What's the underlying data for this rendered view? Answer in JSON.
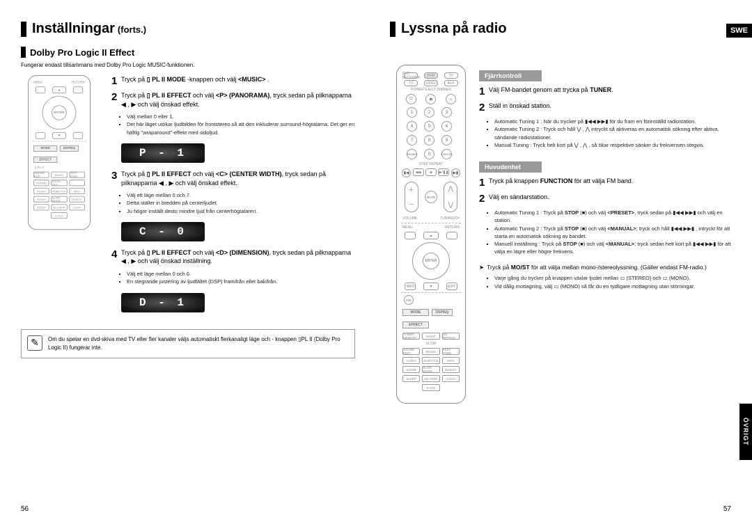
{
  "left": {
    "title_main": "Inställningar",
    "title_sub": "(forts.)",
    "section": "Dolby Pro Logic II Effect",
    "fine": "Fungerar endast tillsammans med Dolby Pro Logic MUSIC-funktionen.",
    "step1": "Tryck på <b>▯ PL II MODE</b> -knappen och välj <b>&lt;MUSIC&gt;</b> .",
    "step2": "Tryck på <b>▯ PL II EFFECT</b> och välj <b>&lt;P&gt; (PANORAMA)</b>, tryck sedan på pilknapparna ◀ , ▶ och välj önskad effekt.",
    "step2_bullets": [
      "Välj mellan 0 eller 1.",
      "Det här läget utökar ljudbilden för frontstereo så att den inkluderar surround-högtalarna. Det ger en häftig \"wraparound\"-effekt med sidoljud."
    ],
    "display1": "P - 1",
    "step3": "Tryck på <b>▯ PL II EFFECT</b> och välj <b>&lt;C&gt; (CENTER WIDTH)</b>, tryck sedan på pilknapparna ◀ , ▶ och välj önskad effekt.",
    "step3_bullets": [
      "Välj ett läge mellan 0 och 7.",
      "Detta ställer in bredden på centerljudet.",
      "Ju högre inställt desto mindre ljud från centerhögtalaren."
    ],
    "display2": "C - 0",
    "step4": "Tryck på <b>▯ PL II EFFECT</b> och välj <b>&lt;D&gt; (DIMENSION)</b>, tryck sedan på pilknapparna ◀ , ▶ och välj önskad inställning.",
    "step4_bullets": [
      "Välj ett läge mellan 0 och 6.",
      "En stegrande justering av ljudfältet (DSP) framifrån eller bakifrån."
    ],
    "display3": "D - 1",
    "note": "Om du spelar en dvd-skiva med TV eller fler kanaler väljs automatiskt flerkanaligt läge och - knappen ▯PL II (Dolby Pro Logic II) fungerar inte.",
    "page_num": "56"
  },
  "right": {
    "title_main": "Lyssna på radio",
    "swe": "SWE",
    "remote_head": "Fjärrkontroll",
    "r_step1": "Välj FM-bandet genom att trycka på <b>TUNER</b>.",
    "r_step2": "Ställ in önskad station.",
    "r_bullets": [
      "Automatic Tuning 1 : När du trycker på ▮◀◀ ▶▶▮ för du fram en förinställd radiostation.",
      "Automatic Tuning 2 : Tryck och håll ⋁ , ⋀ intryckt så aktiveras en automatisk sökning efter aktiva, sändande radiostationer.",
      "Manual Tuning : Tryck helt kort på ⋁ , ⋀ , så ökar respektive sänker du frekvensen stegvis."
    ],
    "main_head": "Huvudenhet",
    "m_step1": "Tryck på knappen <b>FUNCTION</b> för att välja FM band.",
    "m_step2": "Välj en sändarstation.",
    "m_bullets": [
      "Automatic Tuning 1 : Tryck på <b>STOP</b> (■) och välj <b>&lt;PRESET&gt;</b>, tryck sedan på ▮◀◀ ▶▶▮ och välj en station.",
      "Automatic Tuning 2 : Tryck på <b>STOP</b> (■) och välj <b>&lt;MANUAL&gt;</b>; tryck och håll ▮◀◀ ▶▶▮ , intryckt för att starta en automatisk sökning av bandet.",
      "Manuell inställning : Tryck på <b>STOP</b> (■) och välj <b>&lt;MANUAL&gt;</b>; tryck sedan helt kort på ▮◀◀ ▶▶▮ för att välja en lägre eller högre frekvens."
    ],
    "tip_main": "Tryck på <b>MO/ST</b> för att välja mellan mono-/stereolyssning. (Gäller endast FM-radio.)",
    "tip_bullets": [
      "Varje gång du trycker på knappen växlar ljudet mellan ▭ (STEREO) och ▭ (MONO).",
      "Vid dålig mottagning, välj ▭ (MONO) så får du en tydligare mottagning utan störningar."
    ],
    "side_tab": "ÖVRIGT",
    "page_num": "57"
  },
  "remote": {
    "top_labels": [
      "MENU",
      "RETURN"
    ],
    "enter": "ENTER",
    "sources": [
      "DVD RECEIVER",
      "DVD",
      "TV"
    ],
    "sources2": [
      "TV",
      "VIDEO",
      "AUX"
    ],
    "power_row": [
      "⏻",
      "⏏",
      "☼"
    ],
    "power_labels": "POWER   EJECT  DIMMER",
    "nums": [
      "1",
      "2",
      "3",
      "4",
      "5",
      "6",
      "7",
      "8",
      "9",
      "REMAIN",
      "0",
      "CANCEL"
    ],
    "step_repeat": "STEP   REPEAT",
    "transport": [
      "◀◀",
      "■",
      "▶/❚❚",
      "▶▶"
    ],
    "vol_plus": "＋",
    "vol_minus": "－",
    "mute": "MUTE",
    "vol_label": "VOLUME",
    "tune_label": "TUNING/CH",
    "tune_up": "⋀",
    "tune_down": "⋁",
    "bottom_lbls": [
      "MENU",
      "RETURN"
    ],
    "info_row": [
      "INFO",
      "",
      "EXIT"
    ],
    "pl2_mode": "MODE",
    "pl2_effect": "EFFECT",
    "pl2_label": "▯ PL II",
    "dsp_label": "DSP/EQ",
    "btn_grid_top": [
      "TUNER MEMORY",
      "MO/ST",
      "CD RIPPING"
    ],
    "btn_grid_top_lbl": "SLOW",
    "btn_grid1": [
      "AUDIO",
      "SUBTITLE",
      "INFO"
    ],
    "btn_grid2": [
      "ZOOM",
      "SLIDE MODE",
      "DIGEST"
    ],
    "btn_grid3": [
      "SOUND EDIT",
      "MUSIC",
      "TEST TONE",
      "SOUND",
      "ZOOM OUT"
    ],
    "btn_grid4": [
      "SLEEP",
      "EZ VIEW",
      "LOGO"
    ],
    "btn_grid5": [
      "S.VOL"
    ],
    "asc": "ASC"
  }
}
